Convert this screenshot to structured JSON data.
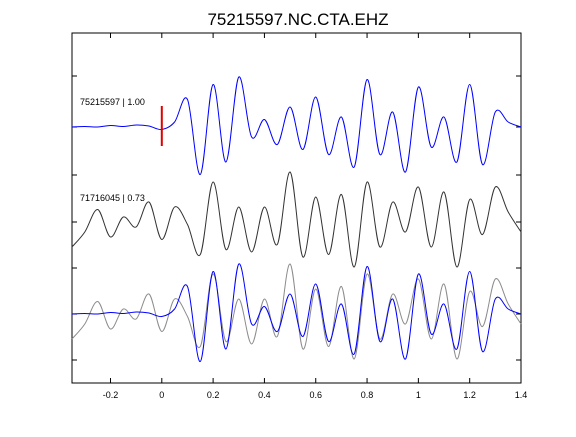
{
  "chart_data": {
    "type": "line",
    "title": "75215597.NC.CTA.EHZ",
    "xlabel": "",
    "ylabel": "",
    "xlim": [
      -0.35,
      1.4
    ],
    "x_ticks": [
      -0.2,
      0,
      0.2,
      0.4,
      0.6,
      0.8,
      1,
      1.2,
      1.4
    ],
    "x_tick_labels": [
      "-0.2",
      "0",
      "0.2",
      "0.4",
      "0.6",
      "0.8",
      "1",
      "1.2",
      "1.4"
    ],
    "grid": false,
    "legend": "none",
    "pick_time": 0,
    "x": [
      -0.35,
      -0.3,
      -0.25,
      -0.2,
      -0.15,
      -0.1,
      -0.05,
      0,
      0.05,
      0.1,
      0.15,
      0.2,
      0.25,
      0.3,
      0.35,
      0.4,
      0.45,
      0.5,
      0.55,
      0.6,
      0.65,
      0.7,
      0.75,
      0.8,
      0.85,
      0.9,
      0.95,
      1,
      1.05,
      1.1,
      1.15,
      1.2,
      1.25,
      1.3,
      1.35,
      1.4
    ],
    "series": [
      {
        "label": "75215597 | 1.00",
        "color": "#0000ff",
        "y": [
          0.0,
          0.01,
          0.0,
          0.03,
          0.01,
          0.04,
          0.02,
          -0.05,
          0.1,
          0.55,
          -0.95,
          0.85,
          -0.7,
          1.0,
          -0.2,
          0.15,
          -0.35,
          0.4,
          -0.45,
          0.6,
          -0.55,
          0.2,
          -0.8,
          0.95,
          -0.55,
          0.3,
          -0.9,
          0.8,
          -0.4,
          0.2,
          -0.7,
          0.85,
          -0.75,
          0.3,
          0.1,
          0.0
        ]
      },
      {
        "label": "71716045 | 0.73",
        "color": "#333333",
        "y": [
          -0.5,
          -0.2,
          0.25,
          -0.3,
          0.1,
          -0.1,
          0.4,
          -0.35,
          0.3,
          -0.05,
          -0.65,
          0.8,
          -0.55,
          0.3,
          -0.6,
          0.3,
          -0.45,
          1.0,
          -0.7,
          0.5,
          -0.65,
          0.55,
          -0.9,
          0.8,
          -0.5,
          0.4,
          -0.2,
          0.7,
          -0.5,
          0.6,
          -0.9,
          0.45,
          -0.25,
          0.7,
          0.2,
          -0.2
        ]
      }
    ],
    "overlay": {
      "series_order": [
        1,
        0
      ],
      "overlay_colors": [
        "#0000ff",
        "#8c8c8c"
      ]
    }
  }
}
